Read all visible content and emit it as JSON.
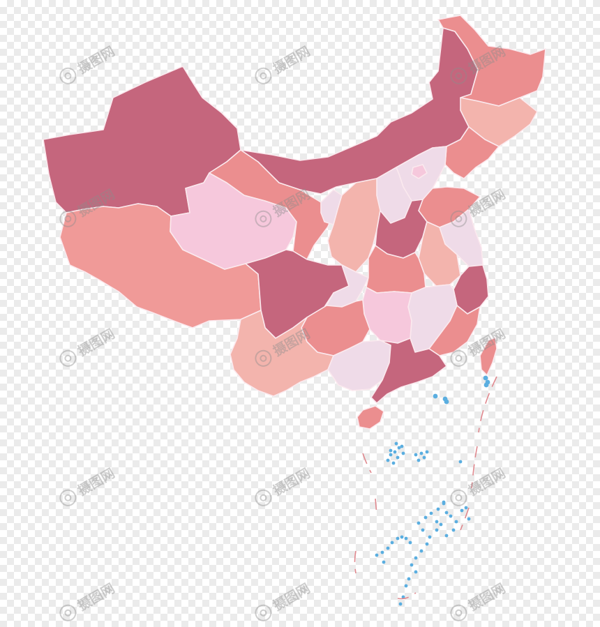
{
  "map": {
    "palette": {
      "deep_rose": "#c5667d",
      "salmon": "#eb8e8f",
      "coral": "#f09a98",
      "peach": "#f3b4ad",
      "light_pink": "#f6c8dc",
      "lavender_pink": "#efdbe8",
      "islands_blue": "#5aaee0",
      "dashed_border": "#e0888e"
    },
    "watermark": {
      "text": "摄图网",
      "icon": "camera-icon"
    }
  }
}
